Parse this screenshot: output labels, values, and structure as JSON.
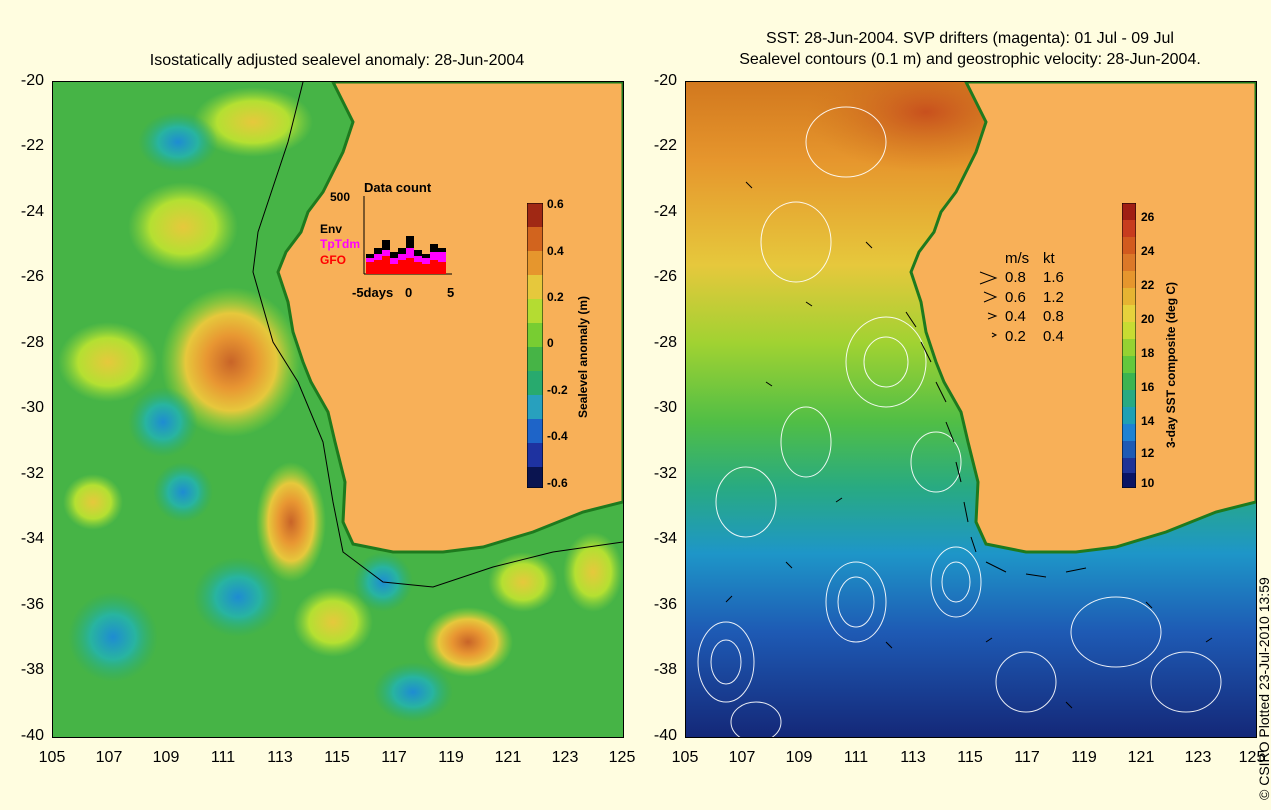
{
  "left_panel": {
    "title": "Isostatically adjusted sealevel anomaly: 28-Jun-2004",
    "colorbar": {
      "label": "Sealevel anomaly (m)",
      "ticks": [
        "0.6",
        "0.4",
        "0.2",
        "0",
        "-0.2",
        "-0.4",
        "-0.6"
      ],
      "range": [
        -0.6,
        0.6
      ]
    },
    "inset": {
      "title": "Data count",
      "ymax_label": "500",
      "series_labels": [
        "Env",
        "TpTdm",
        "GFO"
      ],
      "series_colors": [
        "#000000",
        "#ff00ff",
        "#ff0000"
      ],
      "x_ticks": [
        "-5days",
        "0",
        "5"
      ]
    }
  },
  "right_panel": {
    "title_line1": "SST: 28-Jun-2004. SVP drifters (magenta): 01 Jul - 09 Jul",
    "title_line2": "Sealevel contours (0.1 m) and geostrophic velocity: 28-Jun-2004.",
    "colorbar": {
      "label": "3-day SST composite (deg C)",
      "ticks": [
        "26",
        "24",
        "22",
        "20",
        "18",
        "16",
        "14",
        "12",
        "10"
      ],
      "range": [
        10,
        27
      ]
    },
    "velocity_legend": {
      "header_ms": "m/s",
      "header_kt": "kt",
      "rows": [
        {
          "ms": "0.8",
          "kt": "1.6"
        },
        {
          "ms": "0.6",
          "kt": "1.2"
        },
        {
          "ms": "0.4",
          "kt": "0.8"
        },
        {
          "ms": "0.2",
          "kt": "0.4"
        }
      ]
    }
  },
  "axes": {
    "lat_ticks": [
      "-20",
      "-22",
      "-24",
      "-26",
      "-28",
      "-30",
      "-32",
      "-34",
      "-36",
      "-38",
      "-40"
    ],
    "lon_ticks": [
      "105",
      "107",
      "109",
      "111",
      "113",
      "115",
      "117",
      "119",
      "121",
      "123",
      "125"
    ],
    "lat_range": [
      -40,
      -20
    ],
    "lon_range": [
      105,
      125
    ]
  },
  "credit": "© CSIRO Plotted 23-Jul-2010 13:59",
  "colors": {
    "land": "#f8b058",
    "background": "#fffde0",
    "sla_base": "#3cb43c"
  }
}
